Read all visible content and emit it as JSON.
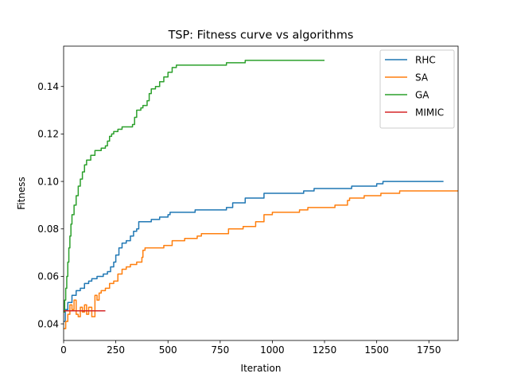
{
  "chart_data": {
    "type": "line",
    "title": "TSP: Fitness curve vs algorithms",
    "xlabel": "Iteration",
    "ylabel": "Fitness",
    "xlim": [
      0,
      1890
    ],
    "ylim": [
      0.033,
      0.157
    ],
    "xticks": [
      0,
      250,
      500,
      750,
      1000,
      1250,
      1500,
      1750
    ],
    "yticks": [
      0.04,
      0.06,
      0.08,
      0.1,
      0.12,
      0.14
    ],
    "xtick_labels": [
      "0",
      "250",
      "500",
      "750",
      "1000",
      "1250",
      "1500",
      "1750"
    ],
    "ytick_labels": [
      "0.04",
      "0.06",
      "0.08",
      "0.10",
      "0.12",
      "0.14"
    ],
    "grid": false,
    "legend_position": "top-right",
    "series": [
      {
        "name": "RHC",
        "color": "#1f77b4",
        "step": true,
        "points": [
          [
            0,
            0.041
          ],
          [
            8,
            0.046
          ],
          [
            20,
            0.049
          ],
          [
            40,
            0.052
          ],
          [
            60,
            0.054
          ],
          [
            80,
            0.055
          ],
          [
            100,
            0.057
          ],
          [
            120,
            0.058
          ],
          [
            135,
            0.059
          ],
          [
            160,
            0.06
          ],
          [
            190,
            0.061
          ],
          [
            210,
            0.062
          ],
          [
            225,
            0.064
          ],
          [
            240,
            0.066
          ],
          [
            250,
            0.069
          ],
          [
            265,
            0.072
          ],
          [
            280,
            0.074
          ],
          [
            300,
            0.075
          ],
          [
            320,
            0.077
          ],
          [
            335,
            0.079
          ],
          [
            350,
            0.08
          ],
          [
            360,
            0.083
          ],
          [
            420,
            0.084
          ],
          [
            460,
            0.085
          ],
          [
            500,
            0.086
          ],
          [
            510,
            0.087
          ],
          [
            630,
            0.088
          ],
          [
            780,
            0.089
          ],
          [
            810,
            0.091
          ],
          [
            870,
            0.093
          ],
          [
            960,
            0.095
          ],
          [
            1150,
            0.096
          ],
          [
            1200,
            0.097
          ],
          [
            1380,
            0.098
          ],
          [
            1500,
            0.099
          ],
          [
            1530,
            0.1
          ],
          [
            1820,
            0.1
          ]
        ]
      },
      {
        "name": "SA",
        "color": "#ff7f0e",
        "step": true,
        "points": [
          [
            0,
            0.038
          ],
          [
            10,
            0.041
          ],
          [
            20,
            0.044
          ],
          [
            30,
            0.048
          ],
          [
            40,
            0.046
          ],
          [
            50,
            0.05
          ],
          [
            60,
            0.044
          ],
          [
            70,
            0.043
          ],
          [
            80,
            0.047
          ],
          [
            90,
            0.045
          ],
          [
            100,
            0.048
          ],
          [
            110,
            0.044
          ],
          [
            120,
            0.047
          ],
          [
            135,
            0.043
          ],
          [
            150,
            0.052
          ],
          [
            160,
            0.05
          ],
          [
            170,
            0.053
          ],
          [
            180,
            0.054
          ],
          [
            200,
            0.055
          ],
          [
            220,
            0.057
          ],
          [
            240,
            0.058
          ],
          [
            260,
            0.061
          ],
          [
            280,
            0.063
          ],
          [
            300,
            0.064
          ],
          [
            320,
            0.065
          ],
          [
            350,
            0.066
          ],
          [
            375,
            0.068
          ],
          [
            380,
            0.071
          ],
          [
            390,
            0.072
          ],
          [
            480,
            0.073
          ],
          [
            520,
            0.075
          ],
          [
            580,
            0.076
          ],
          [
            640,
            0.077
          ],
          [
            660,
            0.078
          ],
          [
            790,
            0.08
          ],
          [
            860,
            0.081
          ],
          [
            920,
            0.083
          ],
          [
            960,
            0.086
          ],
          [
            1000,
            0.087
          ],
          [
            1130,
            0.088
          ],
          [
            1170,
            0.089
          ],
          [
            1300,
            0.09
          ],
          [
            1360,
            0.092
          ],
          [
            1370,
            0.093
          ],
          [
            1440,
            0.094
          ],
          [
            1520,
            0.095
          ],
          [
            1610,
            0.096
          ],
          [
            1890,
            0.096
          ]
        ]
      },
      {
        "name": "GA",
        "color": "#2ca02c",
        "step": true,
        "points": [
          [
            0,
            0.045
          ],
          [
            5,
            0.05
          ],
          [
            10,
            0.055
          ],
          [
            15,
            0.06
          ],
          [
            20,
            0.066
          ],
          [
            25,
            0.072
          ],
          [
            30,
            0.077
          ],
          [
            35,
            0.082
          ],
          [
            40,
            0.086
          ],
          [
            50,
            0.09
          ],
          [
            60,
            0.094
          ],
          [
            70,
            0.098
          ],
          [
            80,
            0.101
          ],
          [
            90,
            0.104
          ],
          [
            100,
            0.107
          ],
          [
            110,
            0.109
          ],
          [
            130,
            0.111
          ],
          [
            150,
            0.113
          ],
          [
            180,
            0.114
          ],
          [
            200,
            0.115
          ],
          [
            210,
            0.117
          ],
          [
            220,
            0.119
          ],
          [
            230,
            0.12
          ],
          [
            240,
            0.121
          ],
          [
            260,
            0.122
          ],
          [
            280,
            0.123
          ],
          [
            330,
            0.124
          ],
          [
            340,
            0.127
          ],
          [
            350,
            0.13
          ],
          [
            370,
            0.131
          ],
          [
            380,
            0.132
          ],
          [
            400,
            0.134
          ],
          [
            410,
            0.137
          ],
          [
            420,
            0.139
          ],
          [
            440,
            0.14
          ],
          [
            460,
            0.142
          ],
          [
            480,
            0.144
          ],
          [
            500,
            0.146
          ],
          [
            520,
            0.148
          ],
          [
            540,
            0.149
          ],
          [
            700,
            0.149
          ],
          [
            780,
            0.15
          ],
          [
            870,
            0.151
          ],
          [
            1250,
            0.151
          ]
        ]
      },
      {
        "name": "MIMIC",
        "color": "#d62728",
        "step": false,
        "points": [
          [
            0,
            0.0455
          ],
          [
            200,
            0.0455
          ]
        ]
      }
    ]
  }
}
